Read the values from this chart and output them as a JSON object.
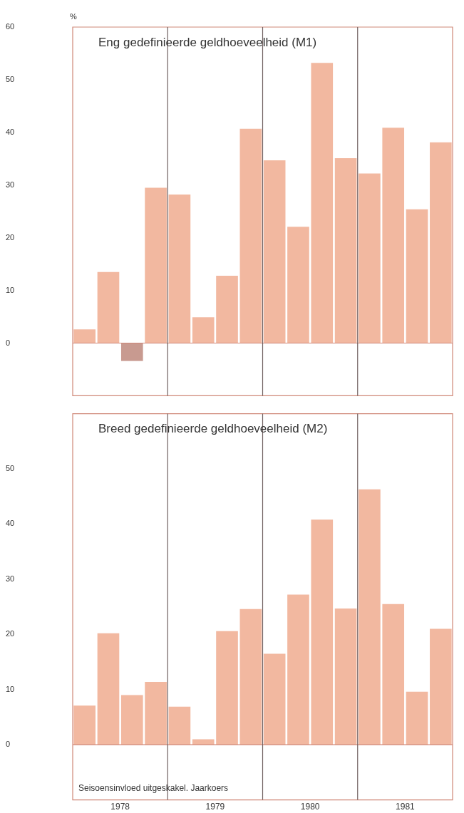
{
  "chart_data": [
    {
      "type": "bar",
      "title": "Eng gedefinieerde geldhoeveelheid (M1)",
      "ylabel": "%",
      "x": [
        1978.125,
        1978.375,
        1978.625,
        1978.875,
        1979.125,
        1979.375,
        1979.625,
        1979.875,
        1980.125,
        1980.375,
        1980.625,
        1980.875,
        1981.125,
        1981.375,
        1981.625,
        1981.875
      ],
      "values": [
        2.6,
        13.5,
        -3.4,
        29.5,
        28.2,
        4.9,
        12.8,
        40.7,
        34.7,
        22.1,
        53.2,
        35.1,
        32.2,
        40.9,
        25.4,
        38.1
      ],
      "colors": [
        "#f2b8a0",
        "#f2b8a0",
        "#c89a90",
        "#f2b8a0",
        "#f2b8a0",
        "#f2b8a0",
        "#f2b8a0",
        "#f2b8a0",
        "#f2b8a0",
        "#f2b8a0",
        "#f2b8a0",
        "#f2b8a0",
        "#f2b8a0",
        "#f2b8a0",
        "#f2b8a0",
        "#f2b8a0"
      ],
      "xlim": [
        1978,
        1982
      ],
      "ylim": [
        -10,
        60
      ],
      "yticks": [
        0,
        10,
        20,
        30,
        40,
        50,
        60
      ],
      "tick_labels": "y",
      "grid": false,
      "ref_lines": [
        {
          "axis": "y",
          "value": 0,
          "color": "#d08878"
        },
        {
          "axis": "x",
          "value": 1979,
          "color": "#6f6060"
        },
        {
          "axis": "x",
          "value": 1980,
          "color": "#6f6060"
        },
        {
          "axis": "x",
          "value": 1981,
          "color": "#6f6060"
        }
      ]
    },
    {
      "type": "bar",
      "title": "Breed gedefinieerde geldhoeveelheid (M2)",
      "x": [
        1978.125,
        1978.375,
        1978.625,
        1978.875,
        1979.125,
        1979.375,
        1979.625,
        1979.875,
        1980.125,
        1980.375,
        1980.625,
        1980.875,
        1981.125,
        1981.375,
        1981.625,
        1981.875
      ],
      "values": [
        7.1,
        20.2,
        9.0,
        11.4,
        6.9,
        1.0,
        20.6,
        24.6,
        16.5,
        27.2,
        40.8,
        24.7,
        46.3,
        25.5,
        9.6,
        21.0
      ],
      "color": "#f2b8a0",
      "xlim": [
        1978,
        1982
      ],
      "xticks": [
        {
          "value": 1978.5,
          "label": "1978"
        },
        {
          "value": 1979.5,
          "label": "1979"
        },
        {
          "value": 1980.5,
          "label": "1980"
        },
        {
          "value": 1981.5,
          "label": "1981"
        }
      ],
      "ylim": [
        -10,
        60
      ],
      "yticks": [
        0,
        10,
        20,
        30,
        40,
        50
      ],
      "grid": false,
      "ref_lines": [
        {
          "axis": "y",
          "value": 0,
          "color": "#d08878"
        },
        {
          "axis": "x",
          "value": 1979,
          "color": "#6f6060"
        },
        {
          "axis": "x",
          "value": 1980,
          "color": "#6f6060"
        },
        {
          "axis": "x",
          "value": 1981,
          "color": "#6f6060"
        }
      ],
      "annotations": [
        "Seisoensinvloed uitgeskakel. Jaarkoers"
      ]
    }
  ]
}
